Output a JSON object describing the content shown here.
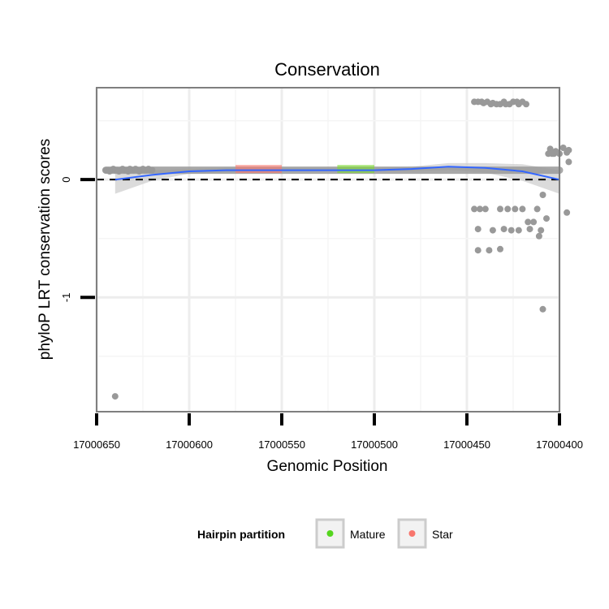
{
  "chart_data": {
    "type": "scatter",
    "title": "Conservation",
    "xlabel": "Genomic Position",
    "ylabel": "phyloP LRT conservation scores",
    "x_reversed": true,
    "xlim": [
      17000400,
      17000650
    ],
    "x_tick_values": [
      17000650,
      17000600,
      17000550,
      17000500,
      17000450,
      17000400
    ],
    "x_tick_labels": [
      "17000650",
      "17000600",
      "17000550",
      "17000500",
      "17000450",
      "17000400"
    ],
    "ylim": [
      -1.97,
      0.78
    ],
    "y_tick_values": [
      0,
      -1
    ],
    "y_tick_labels": [
      "0",
      "-1"
    ],
    "reference_line": {
      "y": 0,
      "style": "dashed"
    },
    "grid": true,
    "series": [
      {
        "name": "conservation",
        "color": "#999999",
        "x": [
          17000645,
          17000644,
          17000643,
          17000642,
          17000641,
          17000640,
          17000639,
          17000638,
          17000637,
          17000636,
          17000635,
          17000634,
          17000633,
          17000632,
          17000631,
          17000630,
          17000629,
          17000628,
          17000627,
          17000626,
          17000625,
          17000624,
          17000623,
          17000622,
          17000621,
          17000620,
          17000640,
          17000446,
          17000444,
          17000442,
          17000441,
          17000439,
          17000437,
          17000436,
          17000434,
          17000432,
          17000430,
          17000429,
          17000427,
          17000425,
          17000423,
          17000422,
          17000420,
          17000418,
          17000446,
          17000444,
          17000440,
          17000436,
          17000432,
          17000428,
          17000424,
          17000422,
          17000420,
          17000416,
          17000412,
          17000410,
          17000444,
          17000438,
          17000432,
          17000426,
          17000417,
          17000414,
          17000443,
          17000430,
          17000411,
          17000409,
          17000409,
          17000407,
          17000406,
          17000405,
          17000404,
          17000403,
          17000402,
          17000398,
          17000400,
          17000396,
          17000395,
          17000396,
          17000395
        ],
        "y": [
          0.08,
          0.08,
          0.07,
          0.08,
          0.09,
          0.08,
          0.08,
          0.07,
          0.08,
          0.09,
          0.08,
          0.08,
          0.07,
          0.09,
          0.08,
          0.08,
          0.09,
          0.08,
          0.07,
          0.08,
          0.09,
          0.08,
          0.08,
          0.09,
          0.08,
          0.08,
          -1.84,
          0.66,
          0.66,
          0.66,
          0.65,
          0.66,
          0.64,
          0.65,
          0.64,
          0.64,
          0.66,
          0.64,
          0.64,
          0.66,
          0.66,
          0.64,
          0.66,
          0.64,
          -0.25,
          -0.42,
          -0.25,
          -0.43,
          -0.25,
          -0.25,
          -0.25,
          -0.43,
          -0.25,
          -0.42,
          -0.25,
          -0.43,
          -0.6,
          -0.6,
          -0.59,
          -0.43,
          -0.36,
          -0.36,
          -0.25,
          -0.42,
          -0.48,
          -0.13,
          -1.1,
          -0.33,
          0.22,
          0.26,
          0.22,
          0.22,
          0.24,
          0.27,
          0.22,
          0.23,
          0.25,
          -0.28,
          0.15
        ]
      }
    ],
    "baseline_band": {
      "x": [
        17000645,
        17000400
      ],
      "y": 0.08
    },
    "smooth": {
      "name": "loess",
      "color": "#3366FF",
      "band_color": "#cccccc",
      "x": [
        17000640,
        17000620,
        17000600,
        17000580,
        17000560,
        17000540,
        17000520,
        17000500,
        17000480,
        17000460,
        17000440,
        17000420,
        17000400
      ],
      "y": [
        0.0,
        0.04,
        0.07,
        0.08,
        0.08,
        0.08,
        0.08,
        0.08,
        0.09,
        0.11,
        0.1,
        0.07,
        0.0
      ],
      "lower": [
        -0.12,
        -0.01,
        0.05,
        0.06,
        0.07,
        0.07,
        0.07,
        0.07,
        0.07,
        0.08,
        0.06,
        -0.01,
        -0.12
      ],
      "upper": [
        0.1,
        0.08,
        0.09,
        0.1,
        0.1,
        0.1,
        0.1,
        0.1,
        0.11,
        0.14,
        0.14,
        0.13,
        0.08
      ]
    },
    "highlights": [
      {
        "name": "Star",
        "color": "#F8766D",
        "x_start": 17000575,
        "x_end": 17000550,
        "y": 0.09
      },
      {
        "name": "Mature",
        "color": "#7CDB2F",
        "x_start": 17000520,
        "x_end": 17000500,
        "y": 0.09
      }
    ],
    "legend": {
      "title": "Hairpin partition",
      "placement": "bottom",
      "items": [
        {
          "label": "Mature",
          "color": "#55D51E"
        },
        {
          "label": "Star",
          "color": "#F8766D"
        }
      ]
    }
  }
}
